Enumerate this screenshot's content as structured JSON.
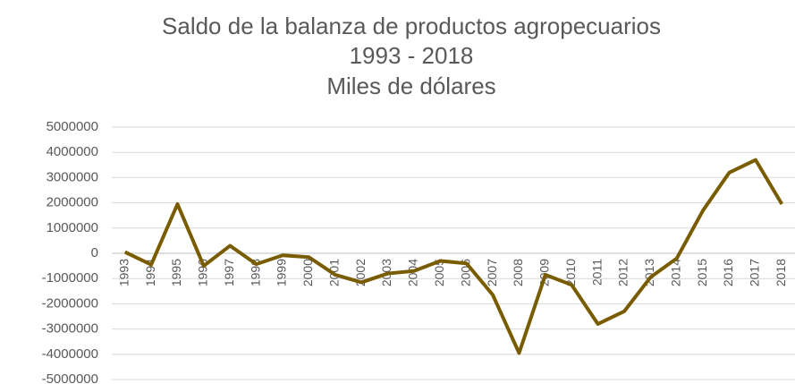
{
  "chart_data": {
    "type": "line",
    "title": [
      "Saldo de la balanza de productos agropecuarios",
      "1993 - 2018",
      "Miles de dólares"
    ],
    "categories": [
      "1993",
      "1994",
      "1995",
      "1996",
      "1997",
      "1998",
      "1999",
      "2000",
      "2001",
      "2002",
      "2003",
      "2004",
      "2005",
      "2006",
      "2007",
      "2008",
      "2009",
      "2010",
      "2011",
      "2012",
      "2013",
      "2014",
      "2015",
      "2016",
      "2017",
      "2018"
    ],
    "series": [
      {
        "color": "#7a5c00",
        "values": [
          50000,
          -450000,
          1950000,
          -500000,
          300000,
          -430000,
          -80000,
          -150000,
          -850000,
          -1150000,
          -800000,
          -700000,
          -300000,
          -400000,
          -1650000,
          -3950000,
          -850000,
          -1250000,
          -2800000,
          -2300000,
          -950000,
          -200000,
          1700000,
          3200000,
          3700000,
          1950000
        ]
      }
    ],
    "ylim": [
      -5000000,
      5000000
    ],
    "yticks": [
      -5000000,
      -4000000,
      -3000000,
      -2000000,
      -1000000,
      0,
      1000000,
      2000000,
      3000000,
      4000000,
      5000000
    ],
    "grid": true
  }
}
